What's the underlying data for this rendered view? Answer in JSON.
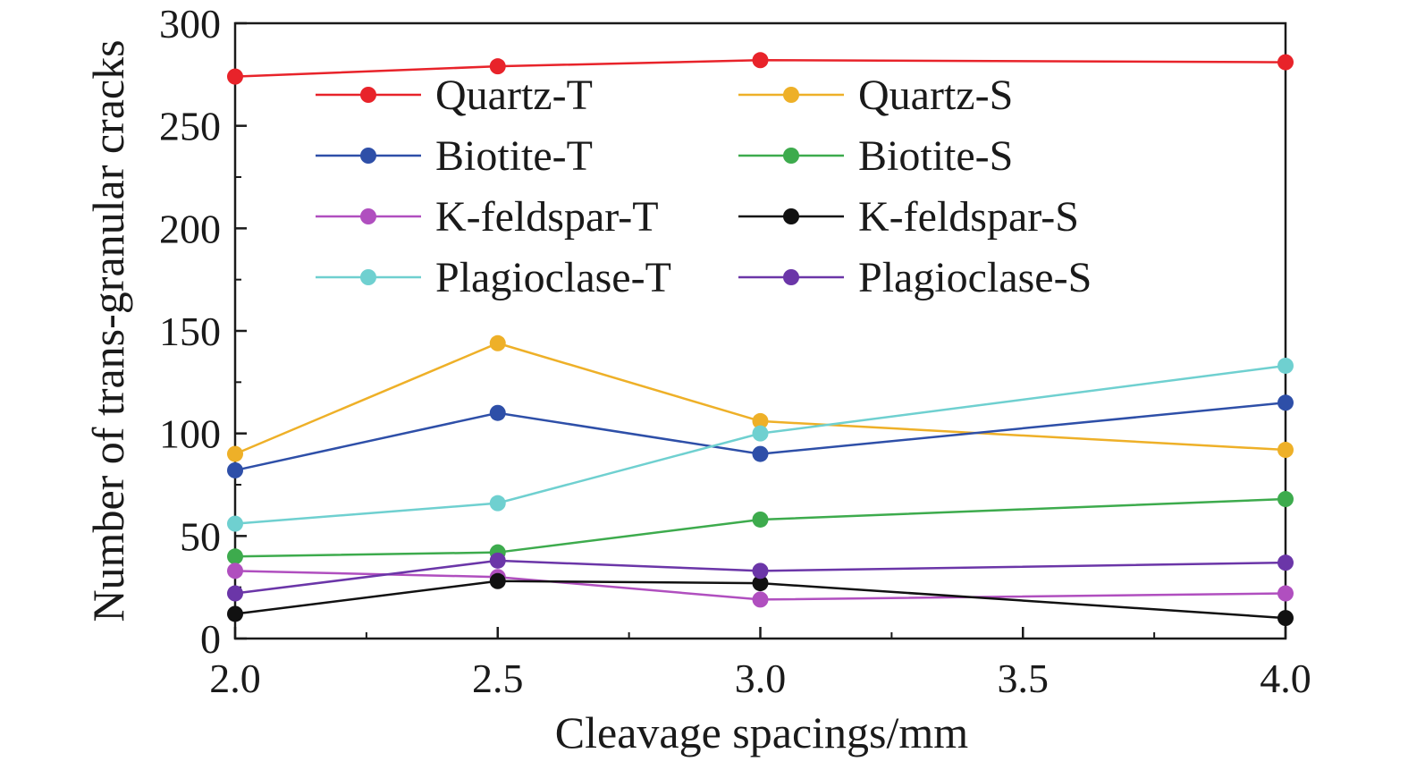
{
  "chart_data": {
    "type": "line",
    "xlabel": "Cleavage spacings/mm",
    "ylabel": "Number of trans-granular cracks",
    "xlim": [
      2.0,
      4.0
    ],
    "ylim": [
      0,
      300
    ],
    "x_ticks": [
      "2.0",
      "2.5",
      "3.0",
      "3.5",
      "4.0"
    ],
    "y_ticks": [
      "0",
      "50",
      "100",
      "150",
      "200",
      "250",
      "300"
    ],
    "grid": false,
    "legend_position": "top, two columns",
    "series": [
      {
        "name": "Quartz-T",
        "color": "#e8232a",
        "x": [
          2.0,
          2.5,
          3.0,
          4.0
        ],
        "values": [
          274,
          279,
          282,
          281
        ]
      },
      {
        "name": "Quartz-S",
        "color": "#eeb028",
        "x": [
          2.0,
          2.5,
          3.0,
          4.0
        ],
        "values": [
          90,
          144,
          106,
          92
        ]
      },
      {
        "name": "Biotite-T",
        "color": "#2e4fa8",
        "x": [
          2.0,
          2.5,
          3.0,
          4.0
        ],
        "values": [
          82,
          110,
          90,
          115
        ]
      },
      {
        "name": "Biotite-S",
        "color": "#3dab4d",
        "x": [
          2.0,
          2.5,
          3.0,
          4.0
        ],
        "values": [
          40,
          42,
          58,
          68
        ]
      },
      {
        "name": "K-feldspar-T",
        "color": "#b04fbf",
        "x": [
          2.0,
          2.5,
          3.0,
          4.0
        ],
        "values": [
          33,
          30,
          19,
          22
        ]
      },
      {
        "name": "K-feldspar-S",
        "color": "#111111",
        "x": [
          2.0,
          2.5,
          3.0,
          4.0
        ],
        "values": [
          12,
          28,
          27,
          10
        ]
      },
      {
        "name": "Plagioclase-T",
        "color": "#6fd0d0",
        "x": [
          2.0,
          2.5,
          3.0,
          4.0
        ],
        "values": [
          56,
          66,
          100,
          133
        ]
      },
      {
        "name": "Plagioclase-S",
        "color": "#6b36a8",
        "x": [
          2.0,
          2.5,
          3.0,
          4.0
        ],
        "values": [
          22,
          38,
          33,
          37
        ]
      }
    ]
  }
}
